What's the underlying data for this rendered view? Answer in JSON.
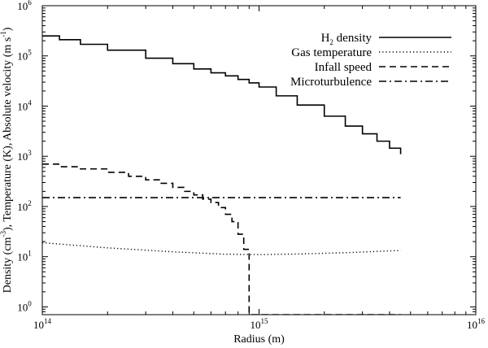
{
  "chart_data": {
    "type": "line",
    "title": "",
    "xlabel": "Radius (m)",
    "ylabel": "Density (cm⁻³), Temperature (K), Absolute velocity (m s⁻¹)",
    "xscale": "log",
    "yscale": "log",
    "xlim": [
      100000000000000.0,
      1e+16
    ],
    "ylim": [
      0.7,
      1000000.0
    ],
    "grid": false,
    "legend_position": "top-right",
    "x_ticks": [
      {
        "value": 100000000000000.0,
        "base": "10",
        "exp": "14"
      },
      {
        "value": 1000000000000000.0,
        "base": "10",
        "exp": "15"
      },
      {
        "value": 1e+16,
        "base": "10",
        "exp": "16"
      }
    ],
    "y_ticks": [
      {
        "value": 1,
        "base": "10",
        "exp": "0"
      },
      {
        "value": 10,
        "base": "10",
        "exp": "1"
      },
      {
        "value": 100,
        "base": "10",
        "exp": "2"
      },
      {
        "value": 1000,
        "base": "10",
        "exp": "3"
      },
      {
        "value": 10000,
        "base": "10",
        "exp": "4"
      },
      {
        "value": 100000,
        "base": "10",
        "exp": "5"
      },
      {
        "value": 1000000,
        "base": "10",
        "exp": "6"
      }
    ],
    "xlabel_text": "Radius (m)",
    "ylabel_parts": {
      "a": "Density (cm",
      "a_exp": "-3",
      "b": "), Temperature (K), Absolute velocity (m s",
      "b_exp": "-1",
      "c": ")"
    },
    "series": [
      {
        "name": "H₂ density",
        "legend": {
          "main": "H",
          "sub": "2",
          "rest": " density"
        },
        "style": "solid",
        "step": true,
        "x": [
          100000000000000.0,
          120000000000000.0,
          150000000000000.0,
          200000000000000.0,
          300000000000000.0,
          400000000000000.0,
          500000000000000.0,
          600000000000000.0,
          700000000000000.0,
          800000000000000.0,
          900000000000000.0,
          1000000000000000.0,
          1200000000000000.0,
          1500000000000000.0,
          2000000000000000.0,
          2500000000000000.0,
          3000000000000000.0,
          3500000000000000.0,
          4000000000000000.0,
          4500000000000000.0
        ],
        "y": [
          250000,
          210000,
          170000,
          130000,
          90000,
          70000,
          55000,
          46000,
          40000,
          34000,
          29000,
          24000,
          16000,
          10500,
          6300,
          4000,
          2800,
          2000,
          1450,
          1100
        ]
      },
      {
        "name": "Gas temperature",
        "legend": {
          "main": "Gas temperature",
          "sub": "",
          "rest": ""
        },
        "style": "dotted",
        "step": false,
        "x": [
          100000000000000.0,
          200000000000000.0,
          400000000000000.0,
          700000000000000.0,
          1000000000000000.0,
          1500000000000000.0,
          2500000000000000.0,
          4500000000000000.0
        ],
        "y": [
          19,
          15,
          12.5,
          11.2,
          11.0,
          11.3,
          12.0,
          13.3
        ]
      },
      {
        "name": "Infall speed",
        "legend": {
          "main": "Infall speed",
          "sub": "",
          "rest": ""
        },
        "style": "dashed",
        "step": true,
        "x": [
          100000000000000.0,
          120000000000000.0,
          150000000000000.0,
          200000000000000.0,
          250000000000000.0,
          300000000000000.0,
          350000000000000.0,
          400000000000000.0,
          450000000000000.0,
          500000000000000.0,
          550000000000000.0,
          600000000000000.0,
          650000000000000.0,
          700000000000000.0,
          750000000000000.0,
          800000000000000.0,
          850000000000000.0,
          900000000000000.0,
          950000000000000.0,
          1000000000000000.0,
          4500000000000000.0
        ],
        "y": [
          700,
          620,
          560,
          480,
          400,
          340,
          290,
          240,
          200,
          170,
          140,
          120,
          95,
          70,
          50,
          28,
          14,
          0.7,
          0.7,
          0.7,
          0.7
        ]
      },
      {
        "name": "Microturbulence",
        "legend": {
          "main": "Microturbulence",
          "sub": "",
          "rest": ""
        },
        "style": "dashdot",
        "step": false,
        "x": [
          100000000000000.0,
          4500000000000000.0
        ],
        "y": [
          150,
          150
        ]
      }
    ]
  }
}
